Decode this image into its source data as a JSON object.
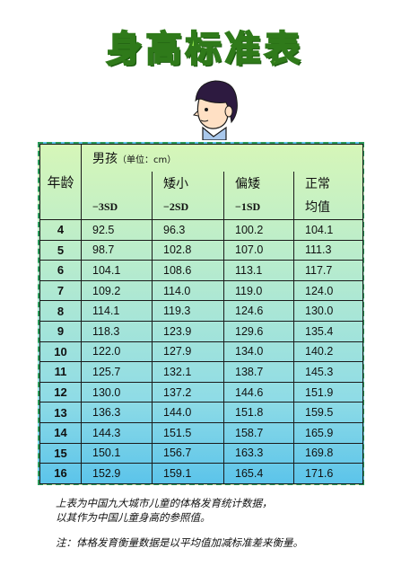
{
  "title": "身高标准表",
  "table": {
    "age_header": "年龄",
    "gender_label": "男孩",
    "unit_label": "（单位：cm）",
    "col_labels": [
      "",
      "矮小",
      "偏矮",
      "正常"
    ],
    "col_sublabels": [
      "−3SD",
      "−2SD",
      "−1SD",
      "均值"
    ],
    "rows": [
      {
        "age": "4",
        "values": [
          "92.5",
          "96.3",
          "100.2",
          "104.1"
        ]
      },
      {
        "age": "5",
        "values": [
          "98.7",
          "102.8",
          "107.0",
          "111.3"
        ]
      },
      {
        "age": "6",
        "values": [
          "104.1",
          "108.6",
          "113.1",
          "117.7"
        ]
      },
      {
        "age": "7",
        "values": [
          "109.2",
          "114.0",
          "119.0",
          "124.0"
        ]
      },
      {
        "age": "8",
        "values": [
          "114.1",
          "119.3",
          "124.6",
          "130.0"
        ]
      },
      {
        "age": "9",
        "values": [
          "118.3",
          "123.9",
          "129.6",
          "135.4"
        ]
      },
      {
        "age": "10",
        "values": [
          "122.0",
          "127.9",
          "134.0",
          "140.2"
        ]
      },
      {
        "age": "11",
        "values": [
          "125.7",
          "132.1",
          "138.7",
          "145.3"
        ]
      },
      {
        "age": "12",
        "values": [
          "130.0",
          "137.2",
          "144.6",
          "151.9"
        ]
      },
      {
        "age": "13",
        "values": [
          "136.3",
          "144.0",
          "151.8",
          "159.5"
        ]
      },
      {
        "age": "14",
        "values": [
          "144.3",
          "151.5",
          "158.7",
          "165.9"
        ]
      },
      {
        "age": "15",
        "values": [
          "150.1",
          "156.7",
          "163.3",
          "169.8"
        ]
      },
      {
        "age": "16",
        "values": [
          "152.9",
          "159.1",
          "165.4",
          "171.6"
        ]
      }
    ]
  },
  "notes": {
    "line1": "上表为中国九大城市儿童的体格发育统计数据，",
    "line2": "以其作为中国儿童身高的参照值。",
    "line3": "注：体格发育衡量数据是以平均值加减标准差来衡量。"
  },
  "colors": {
    "title_fill": "#8fe14a",
    "title_stroke": "#2f7a1a",
    "table_top": "#d6f6b8",
    "table_bottom": "#5cc4ea",
    "border_dashed": "#2a9a5a"
  }
}
